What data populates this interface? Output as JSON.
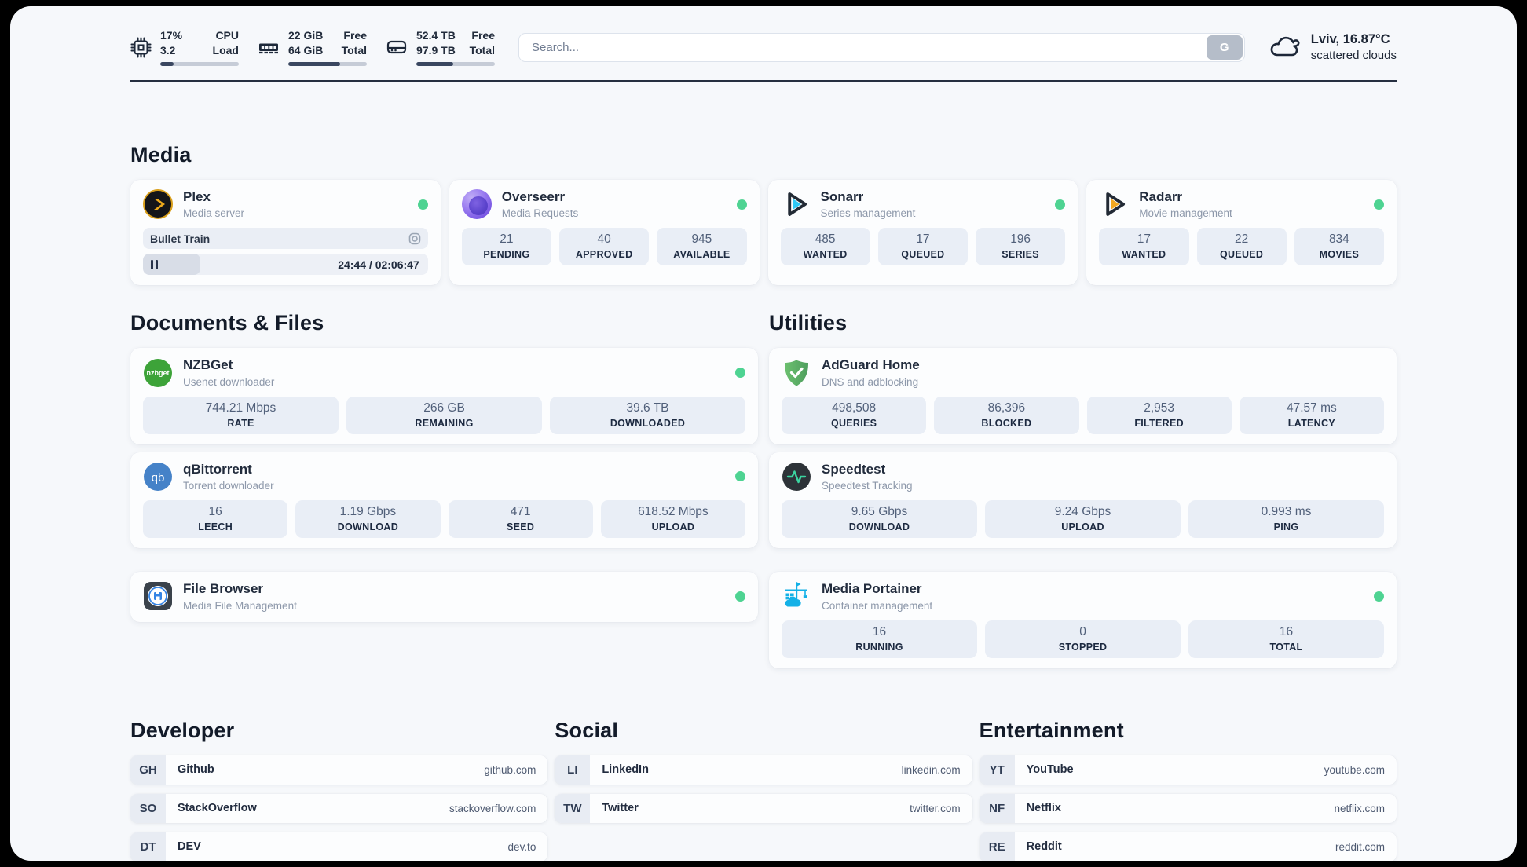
{
  "header": {
    "cpu": {
      "top_value": "17%",
      "bottom_value": "3.2",
      "top_label": "CPU",
      "bottom_label": "Load",
      "progress_pct": 17
    },
    "memory": {
      "top_value": "22 GiB",
      "bottom_value": "64 GiB",
      "top_label": "Free",
      "bottom_label": "Total",
      "progress_pct": 66
    },
    "disk": {
      "top_value": "52.4 TB",
      "bottom_value": "97.9 TB",
      "top_label": "Free",
      "bottom_label": "Total",
      "progress_pct": 47
    },
    "search": {
      "placeholder": "Search...",
      "button_label": "G"
    },
    "weather": {
      "location": "Lviv, 16.87°C",
      "condition": "scattered clouds"
    }
  },
  "colors": {
    "status_online": "#4ed392",
    "sonarr_blue": "#2fc8f5",
    "radarr_orange": "#f2a71f",
    "portainer_blue": "#14b1e7",
    "adguard_green": "#5fb469",
    "plex_gold": "#eda91b"
  },
  "sections": {
    "media": {
      "title": "Media",
      "plex": {
        "name": "Plex",
        "desc": "Media server",
        "now_playing": "Bullet Train",
        "time": "24:44 / 02:06:47",
        "progress_pct": 20
      },
      "overseerr": {
        "name": "Overseerr",
        "desc": "Media Requests",
        "stats": [
          {
            "value": "21",
            "label": "PENDING"
          },
          {
            "value": "40",
            "label": "APPROVED"
          },
          {
            "value": "945",
            "label": "AVAILABLE"
          }
        ]
      },
      "sonarr": {
        "name": "Sonarr",
        "desc": "Series management",
        "stats": [
          {
            "value": "485",
            "label": "WANTED"
          },
          {
            "value": "17",
            "label": "QUEUED"
          },
          {
            "value": "196",
            "label": "SERIES"
          }
        ]
      },
      "radarr": {
        "name": "Radarr",
        "desc": "Movie management",
        "stats": [
          {
            "value": "17",
            "label": "WANTED"
          },
          {
            "value": "22",
            "label": "QUEUED"
          },
          {
            "value": "834",
            "label": "MOVIES"
          }
        ]
      }
    },
    "documents": {
      "title": "Documents & Files",
      "nzbget": {
        "name": "NZBGet",
        "desc": "Usenet downloader",
        "icon_text": "nzbget",
        "stats": [
          {
            "value": "744.21 Mbps",
            "label": "RATE"
          },
          {
            "value": "266 GB",
            "label": "REMAINING"
          },
          {
            "value": "39.6 TB",
            "label": "DOWNLOADED"
          }
        ]
      },
      "qbittorrent": {
        "name": "qBittorrent",
        "desc": "Torrent downloader",
        "icon_text": "qb",
        "stats": [
          {
            "value": "16",
            "label": "LEECH"
          },
          {
            "value": "1.19 Gbps",
            "label": "DOWNLOAD"
          },
          {
            "value": "471",
            "label": "SEED"
          },
          {
            "value": "618.52 Mbps",
            "label": "UPLOAD"
          }
        ]
      },
      "filebrowser": {
        "name": "File Browser",
        "desc": "Media File Management"
      }
    },
    "utilities": {
      "title": "Utilities",
      "adguard": {
        "name": "AdGuard Home",
        "desc": "DNS and adblocking",
        "stats": [
          {
            "value": "498,508",
            "label": "QUERIES"
          },
          {
            "value": "86,396",
            "label": "BLOCKED"
          },
          {
            "value": "2,953",
            "label": "FILTERED"
          },
          {
            "value": "47.57 ms",
            "label": "LATENCY"
          }
        ]
      },
      "speedtest": {
        "name": "Speedtest",
        "desc": "Speedtest Tracking",
        "stats": [
          {
            "value": "9.65 Gbps",
            "label": "DOWNLOAD"
          },
          {
            "value": "9.24 Gbps",
            "label": "UPLOAD"
          },
          {
            "value": "0.993 ms",
            "label": "PING"
          }
        ]
      },
      "portainer": {
        "name": "Media Portainer",
        "desc": "Container management",
        "stats": [
          {
            "value": "16",
            "label": "RUNNING"
          },
          {
            "value": "0",
            "label": "STOPPED"
          },
          {
            "value": "16",
            "label": "TOTAL"
          }
        ]
      }
    },
    "links": {
      "developer": {
        "title": "Developer",
        "items": [
          {
            "abbr": "GH",
            "name": "Github",
            "domain": "github.com"
          },
          {
            "abbr": "SO",
            "name": "StackOverflow",
            "domain": "stackoverflow.com"
          },
          {
            "abbr": "DT",
            "name": "DEV",
            "domain": "dev.to"
          }
        ]
      },
      "social": {
        "title": "Social",
        "items": [
          {
            "abbr": "LI",
            "name": "LinkedIn",
            "domain": "linkedin.com"
          },
          {
            "abbr": "TW",
            "name": "Twitter",
            "domain": "twitter.com"
          }
        ]
      },
      "entertainment": {
        "title": "Entertainment",
        "items": [
          {
            "abbr": "YT",
            "name": "YouTube",
            "domain": "youtube.com"
          },
          {
            "abbr": "NF",
            "name": "Netflix",
            "domain": "netflix.com"
          },
          {
            "abbr": "RE",
            "name": "Reddit",
            "domain": "reddit.com"
          }
        ]
      }
    }
  }
}
